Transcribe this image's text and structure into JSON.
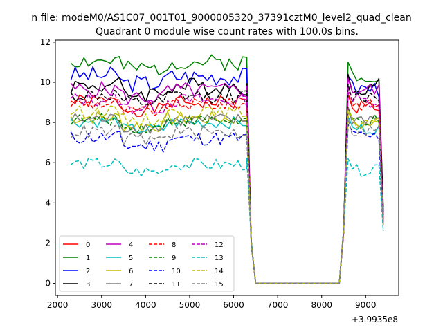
{
  "suptitle": "n file: modeM0/AS1C07_001T01_9000005320_37391cztM0_level2_quad_clean",
  "chart_data": {
    "type": "line",
    "title": "Quadrant 0 module wise count rates with 100.0s bins.",
    "xlabel": "",
    "ylabel": "",
    "x_offset_label": "+3.9935e8",
    "xlim": [
      1950,
      9750
    ],
    "ylim": [
      -0.6,
      12.1
    ],
    "xticks": [
      2000,
      3000,
      4000,
      5000,
      6000,
      7000,
      8000,
      9000
    ],
    "yticks": [
      0,
      2,
      4,
      6,
      8,
      10,
      12
    ],
    "grid": false,
    "legend_placement": "lower-left",
    "segments": [
      {
        "x_start": 2300,
        "x_end": 6300,
        "step": 100
      },
      {
        "x_start": 6300,
        "x_end": 6500,
        "step": 100
      },
      {
        "x_start": 6500,
        "x_end": 8400,
        "step": 100
      },
      {
        "x_start": 8400,
        "x_end": 8800,
        "step": 100
      },
      {
        "x_start": 8800,
        "x_end": 9400,
        "step": 100
      }
    ],
    "series": [
      {
        "name": "0",
        "color": "#ff0000",
        "dash": "solid",
        "base": 8.9,
        "amp": 0.35,
        "seed": 1,
        "high_post": 8.8,
        "end": 3.4
      },
      {
        "name": "1",
        "color": "#008000",
        "dash": "solid",
        "base": 10.9,
        "amp": 0.4,
        "seed": 2,
        "high_post": 10.4,
        "end": 3.6
      },
      {
        "name": "2",
        "color": "#0000ff",
        "dash": "solid",
        "base": 10.2,
        "amp": 0.45,
        "seed": 3,
        "high_post": 9.7,
        "end": 3.5
      },
      {
        "name": "3",
        "color": "#000000",
        "dash": "solid",
        "base": 9.7,
        "amp": 0.45,
        "seed": 4,
        "high_post": 9.8,
        "end": 3.8
      },
      {
        "name": "4",
        "color": "#bf00bf",
        "dash": "solid",
        "base": 9.5,
        "amp": 0.4,
        "seed": 5,
        "high_post": 9.6,
        "end": 3.3
      },
      {
        "name": "5",
        "color": "#00bfbf",
        "dash": "solid",
        "base": 7.9,
        "amp": 0.3,
        "seed": 6,
        "high_post": 7.7,
        "end": 3.2
      },
      {
        "name": "6",
        "color": "#bfbf00",
        "dash": "solid",
        "base": 8.1,
        "amp": 0.35,
        "seed": 7,
        "high_post": 7.9,
        "end": 3.1
      },
      {
        "name": "7",
        "color": "#808080",
        "dash": "solid",
        "base": 8.0,
        "amp": 0.35,
        "seed": 8,
        "high_post": 8.2,
        "end": 3.3
      },
      {
        "name": "8",
        "color": "#ff0000",
        "dash": "dashed",
        "base": 8.8,
        "amp": 0.3,
        "seed": 9,
        "high_post": 8.9,
        "end": 3.2
      },
      {
        "name": "9",
        "color": "#008000",
        "dash": "dashed",
        "base": 8.0,
        "amp": 0.3,
        "seed": 10,
        "high_post": 8.1,
        "end": 3.0
      },
      {
        "name": "10",
        "color": "#0000ff",
        "dash": "dashed",
        "base": 7.1,
        "amp": 0.35,
        "seed": 11,
        "high_post": 7.3,
        "end": 3.0
      },
      {
        "name": "11",
        "color": "#000000",
        "dash": "dashed",
        "base": 9.2,
        "amp": 0.35,
        "seed": 12,
        "high_post": 9.3,
        "end": 3.4
      },
      {
        "name": "12",
        "color": "#bf00bf",
        "dash": "dashed",
        "base": 9.0,
        "amp": 0.35,
        "seed": 13,
        "high_post": 9.1,
        "end": 3.0
      },
      {
        "name": "13",
        "color": "#00bfbf",
        "dash": "dashed",
        "base": 5.8,
        "amp": 0.3,
        "seed": 14,
        "high_post": 5.6,
        "end": 2.6
      },
      {
        "name": "14",
        "color": "#bfbf00",
        "dash": "dashed",
        "base": 8.4,
        "amp": 0.3,
        "seed": 15,
        "high_post": 8.0,
        "end": 2.9
      },
      {
        "name": "15",
        "color": "#808080",
        "dash": "dashed",
        "base": 7.4,
        "amp": 0.35,
        "seed": 16,
        "high_post": 7.6,
        "end": 2.8
      }
    ]
  }
}
